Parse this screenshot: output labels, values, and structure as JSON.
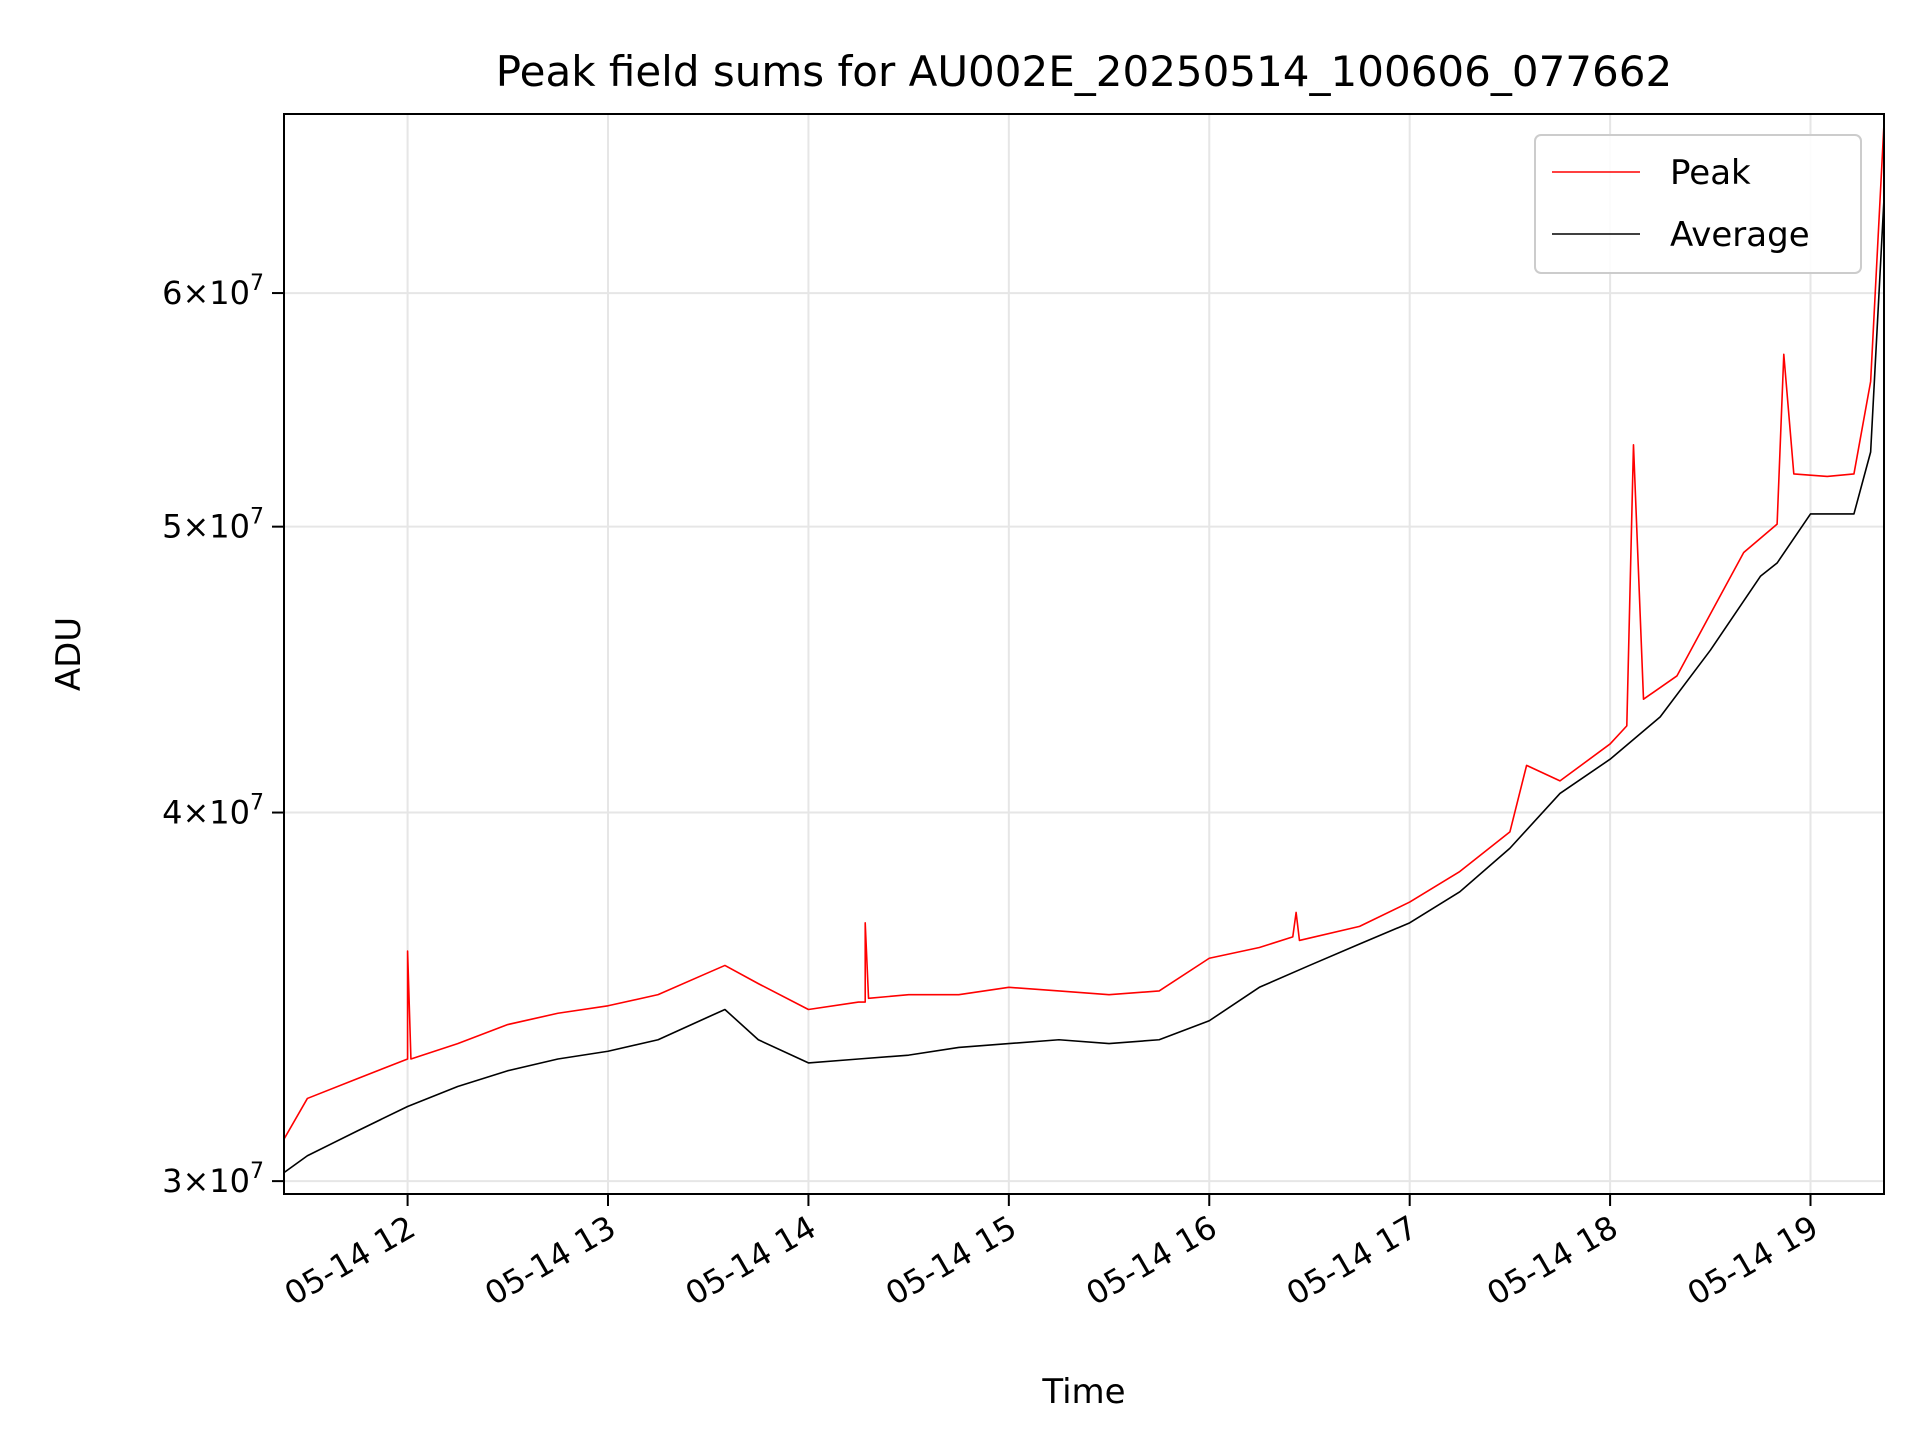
{
  "chart_data": {
    "type": "line",
    "title": "Peak field sums for AU002E_20250514_100606_077662",
    "xlabel": "Time",
    "ylabel": "ADU",
    "y_scale": "log",
    "grid": true,
    "legend_position": "top-right",
    "xlim": [
      "2025-05-14 11:23",
      "2025-05-14 19:22"
    ],
    "ylim": [
      29700000,
      69000000
    ],
    "x_ticks": [
      {
        "value": "2025-05-14 12:00",
        "label": "05-14 12"
      },
      {
        "value": "2025-05-14 13:00",
        "label": "05-14 13"
      },
      {
        "value": "2025-05-14 14:00",
        "label": "05-14 14"
      },
      {
        "value": "2025-05-14 15:00",
        "label": "05-14 15"
      },
      {
        "value": "2025-05-14 16:00",
        "label": "05-14 16"
      },
      {
        "value": "2025-05-14 17:00",
        "label": "05-14 17"
      },
      {
        "value": "2025-05-14 18:00",
        "label": "05-14 18"
      },
      {
        "value": "2025-05-14 19:00",
        "label": "05-14 19"
      }
    ],
    "y_ticks": [
      {
        "value": 30000000,
        "mantissa": "3",
        "exponent": "7"
      },
      {
        "value": 40000000,
        "mantissa": "4",
        "exponent": "7"
      },
      {
        "value": 50000000,
        "mantissa": "5",
        "exponent": "7"
      },
      {
        "value": 60000000,
        "mantissa": "6",
        "exponent": "7"
      }
    ],
    "series": [
      {
        "name": "Peak",
        "color": "#ff0000",
        "x": [
          "2025-05-14 11:23",
          "2025-05-14 11:30",
          "2025-05-14 11:45",
          "2025-05-14 12:00",
          "2025-05-14 12:00",
          "2025-05-14 12:01",
          "2025-05-14 12:15",
          "2025-05-14 12:30",
          "2025-05-14 12:45",
          "2025-05-14 13:00",
          "2025-05-14 13:15",
          "2025-05-14 13:30",
          "2025-05-14 13:35",
          "2025-05-14 13:45",
          "2025-05-14 14:00",
          "2025-05-14 14:15",
          "2025-05-14 14:17",
          "2025-05-14 14:17",
          "2025-05-14 14:18",
          "2025-05-14 14:30",
          "2025-05-14 14:45",
          "2025-05-14 15:00",
          "2025-05-14 15:15",
          "2025-05-14 15:30",
          "2025-05-14 15:45",
          "2025-05-14 16:00",
          "2025-05-14 16:15",
          "2025-05-14 16:25",
          "2025-05-14 16:26",
          "2025-05-14 16:27",
          "2025-05-14 16:45",
          "2025-05-14 17:00",
          "2025-05-14 17:15",
          "2025-05-14 17:30",
          "2025-05-14 17:35",
          "2025-05-14 17:45",
          "2025-05-14 18:00",
          "2025-05-14 18:05",
          "2025-05-14 18:07",
          "2025-05-14 18:10",
          "2025-05-14 18:20",
          "2025-05-14 18:30",
          "2025-05-14 18:40",
          "2025-05-14 18:50",
          "2025-05-14 18:52",
          "2025-05-14 18:55",
          "2025-05-14 19:05",
          "2025-05-14 19:13",
          "2025-05-14 19:18",
          "2025-05-14 19:22"
        ],
        "values": [
          31000000,
          32000000,
          32500000,
          33000000,
          35900000,
          33000000,
          33400000,
          33900000,
          34200000,
          34400000,
          34700000,
          35300000,
          35500000,
          35000000,
          34300000,
          34500000,
          34500000,
          36700000,
          34600000,
          34700000,
          34700000,
          34900000,
          34800000,
          34700000,
          34800000,
          35700000,
          36000000,
          36300000,
          37000000,
          36200000,
          36600000,
          37300000,
          38200000,
          39400000,
          41500000,
          41000000,
          42200000,
          42800000,
          53300000,
          43700000,
          44500000,
          46700000,
          49000000,
          50100000,
          57200000,
          52100000,
          52000000,
          52100000,
          56000000,
          68500000
        ]
      },
      {
        "name": "Average",
        "color": "#000000",
        "x": [
          "2025-05-14 11:23",
          "2025-05-14 11:30",
          "2025-05-14 11:45",
          "2025-05-14 12:00",
          "2025-05-14 12:15",
          "2025-05-14 12:30",
          "2025-05-14 12:45",
          "2025-05-14 13:00",
          "2025-05-14 13:15",
          "2025-05-14 13:30",
          "2025-05-14 13:35",
          "2025-05-14 13:45",
          "2025-05-14 14:00",
          "2025-05-14 14:15",
          "2025-05-14 14:30",
          "2025-05-14 14:45",
          "2025-05-14 15:00",
          "2025-05-14 15:15",
          "2025-05-14 15:30",
          "2025-05-14 15:45",
          "2025-05-14 16:00",
          "2025-05-14 16:15",
          "2025-05-14 16:30",
          "2025-05-14 16:45",
          "2025-05-14 17:00",
          "2025-05-14 17:15",
          "2025-05-14 17:30",
          "2025-05-14 17:45",
          "2025-05-14 18:00",
          "2025-05-14 18:15",
          "2025-05-14 18:30",
          "2025-05-14 18:45",
          "2025-05-14 18:50",
          "2025-05-14 19:00",
          "2025-05-14 19:13",
          "2025-05-14 19:18",
          "2025-05-14 19:22"
        ],
        "values": [
          30200000,
          30600000,
          31200000,
          31800000,
          32300000,
          32700000,
          33000000,
          33200000,
          33500000,
          34100000,
          34300000,
          33500000,
          32900000,
          33000000,
          33100000,
          33300000,
          33400000,
          33500000,
          33400000,
          33500000,
          34000000,
          34900000,
          35500000,
          36100000,
          36700000,
          37600000,
          38900000,
          40600000,
          41700000,
          43100000,
          45400000,
          48100000,
          48600000,
          50500000,
          50500000,
          53000000,
          64600000
        ]
      }
    ]
  }
}
